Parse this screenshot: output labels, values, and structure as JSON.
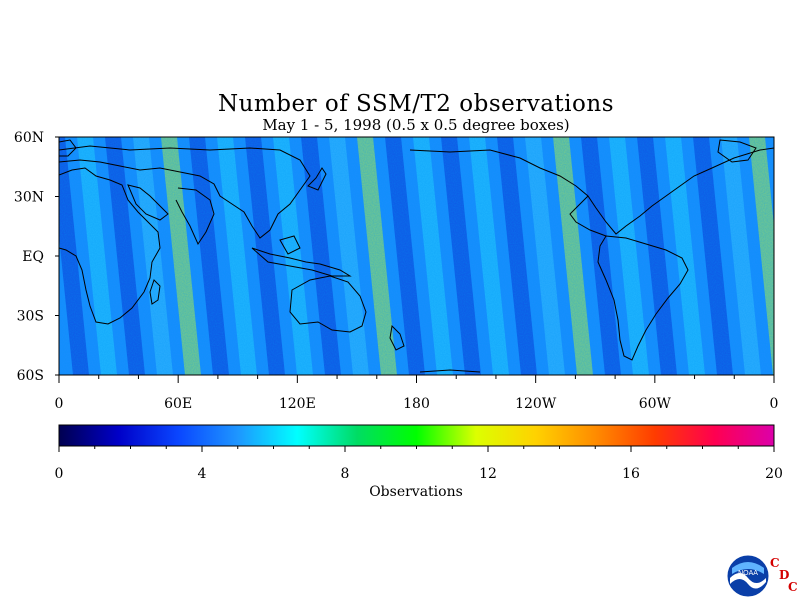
{
  "title": "Number of SSM/T2 observations",
  "subtitle": "May 1 - 5, 1998 (0.5 x 0.5 degree boxes)",
  "map": {
    "lat_labels": [
      "60N",
      "30N",
      "EQ",
      "30S",
      "60S"
    ],
    "lat_values": [
      60,
      30,
      0,
      -30,
      -60
    ],
    "lon_labels": [
      "0",
      "60E",
      "120E",
      "180",
      "120W",
      "60W",
      "0"
    ],
    "lon_values": [
      0,
      60,
      120,
      180,
      240,
      300,
      360
    ],
    "lat_range": [
      -60,
      60
    ],
    "lon_range": [
      0,
      360
    ]
  },
  "colorbar": {
    "label": "Observations",
    "tick_labels": [
      "0",
      "4",
      "8",
      "12",
      "16",
      "20"
    ],
    "tick_values": [
      0,
      4,
      8,
      12,
      16,
      20
    ],
    "range": [
      0,
      20
    ],
    "colors": [
      "#000050",
      "#0000c8",
      "#0a46ff",
      "#1e96ff",
      "#00ffff",
      "#00dc64",
      "#00ff00",
      "#dcff00",
      "#ffd200",
      "#ff8c00",
      "#ff3c00",
      "#ff0050",
      "#dc00aa"
    ]
  },
  "logo": {
    "agency_text": "NOAA",
    "cdc_letters": [
      "C",
      "D",
      "C"
    ]
  }
}
